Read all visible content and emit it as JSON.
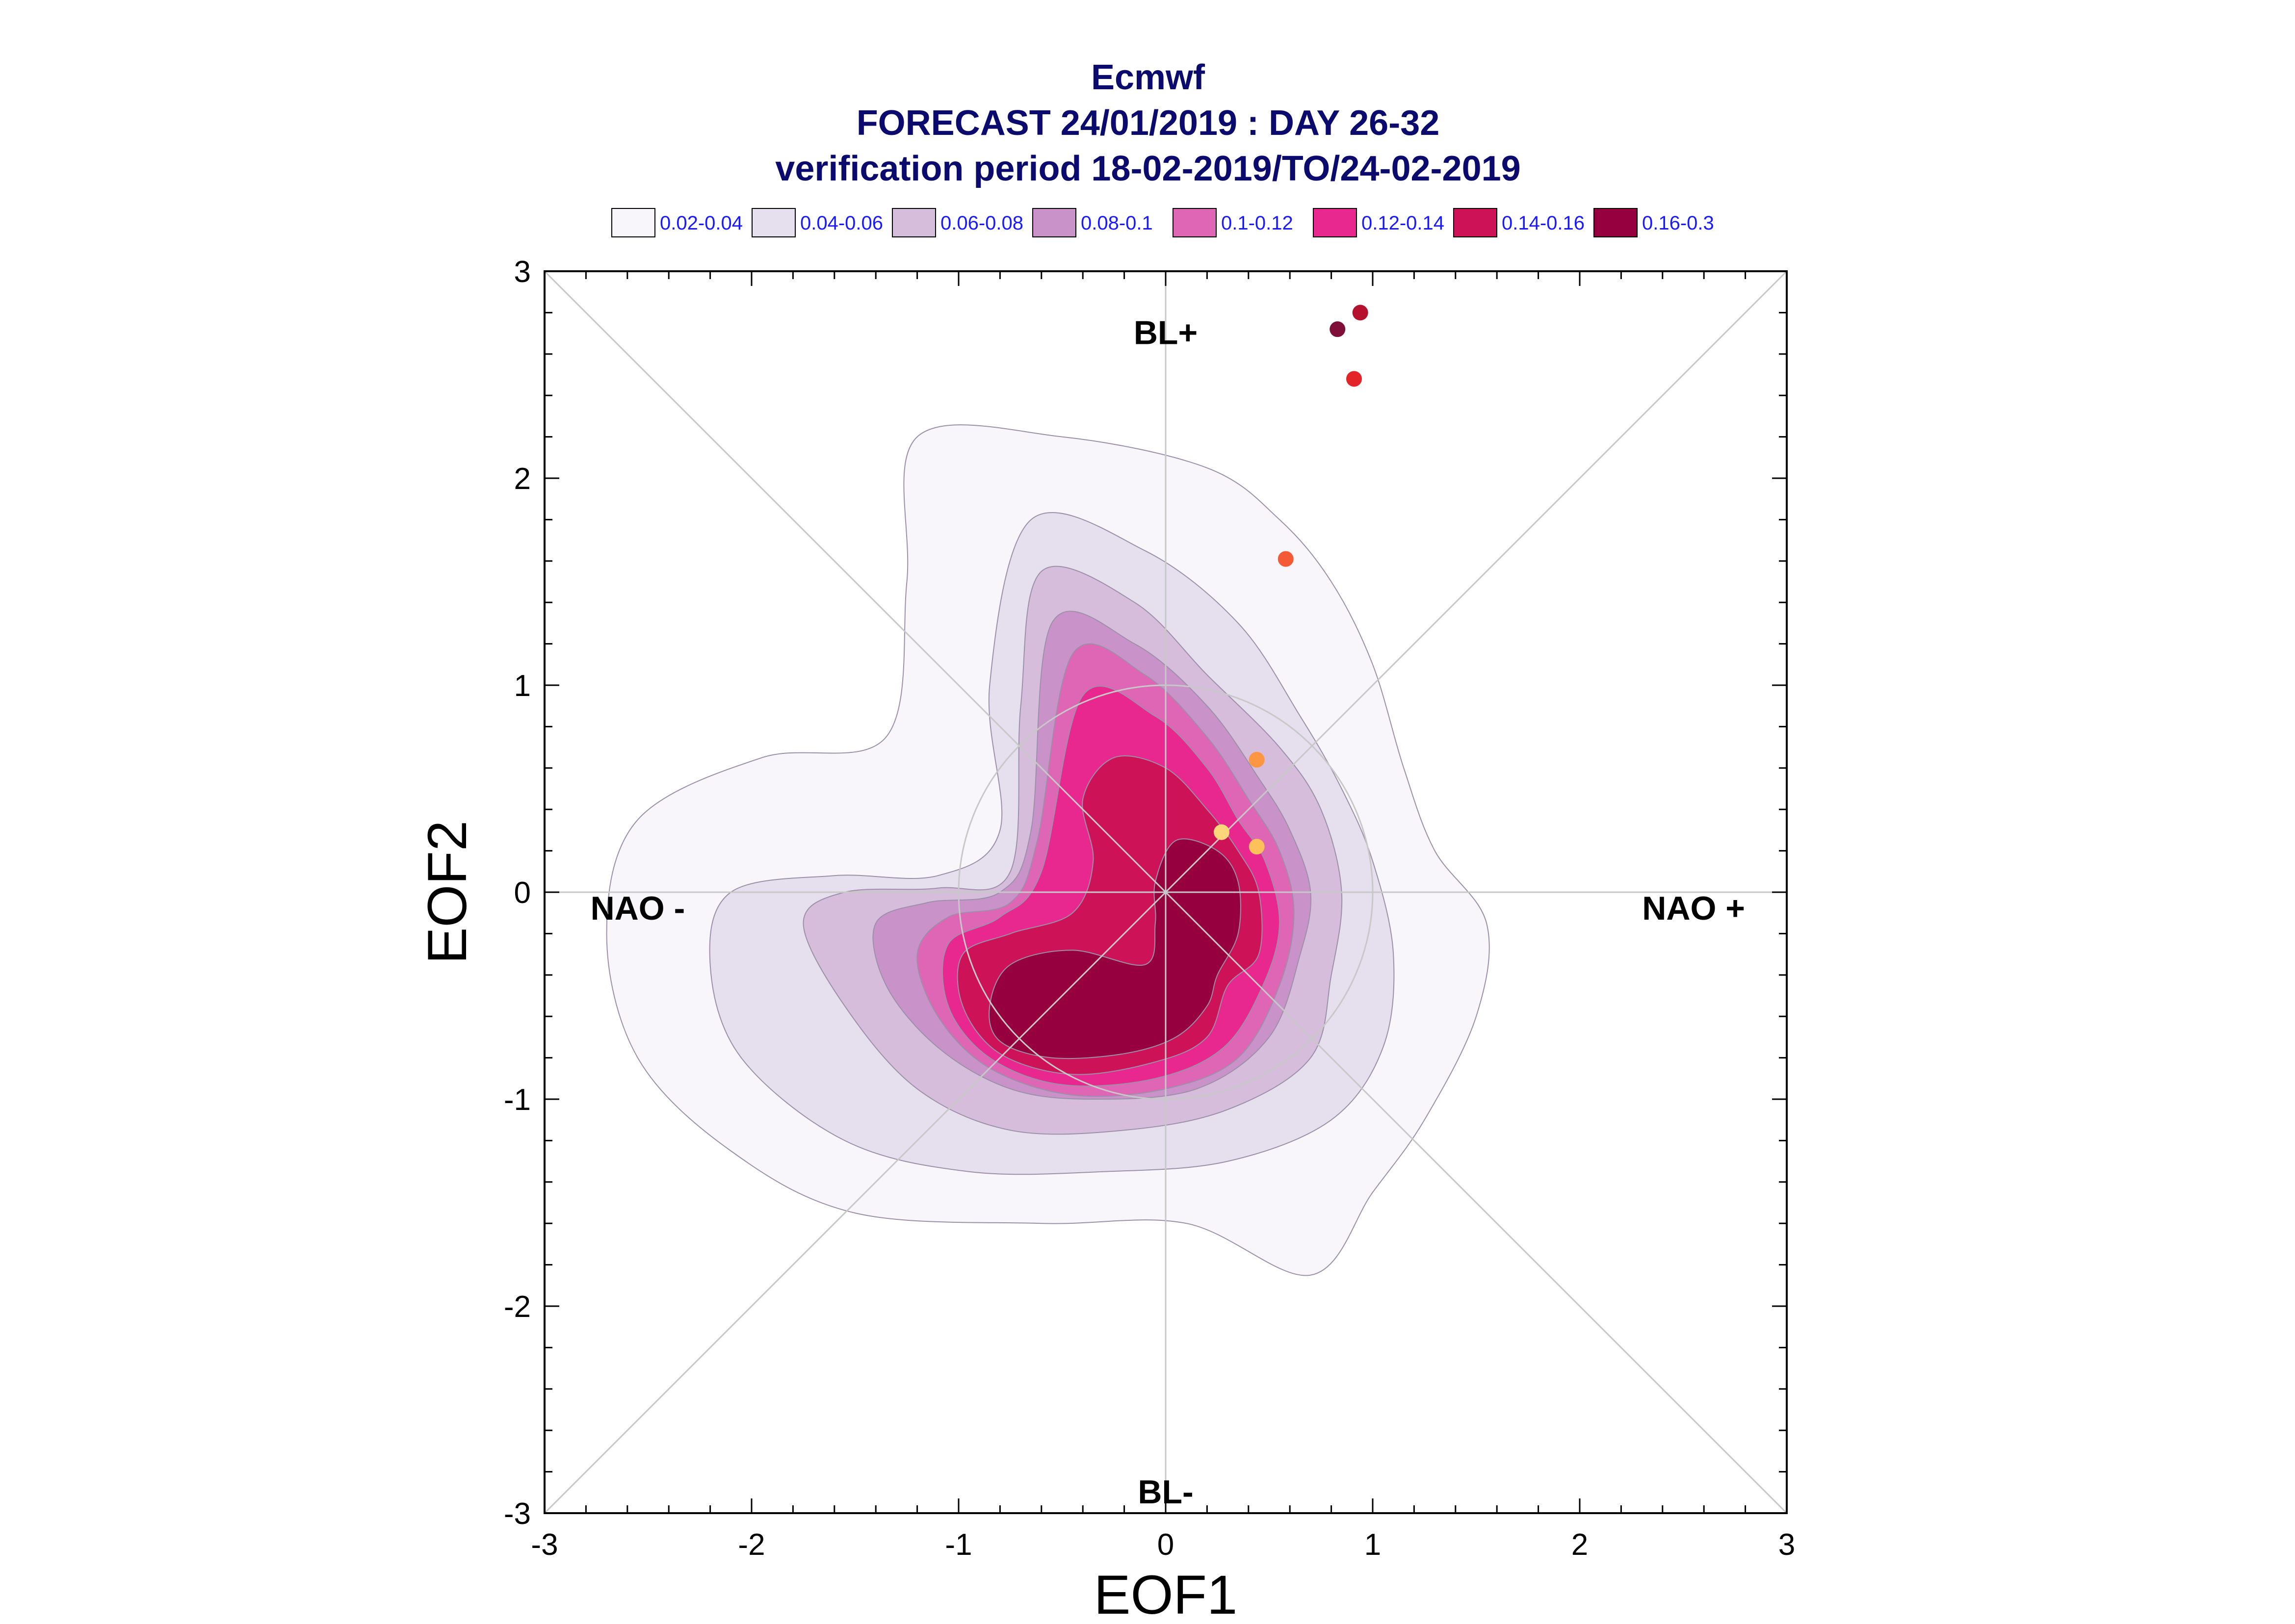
{
  "chart_data": {
    "type": "scatter",
    "title": [
      "Ecmwf",
      "FORECAST 24/01/2019 : DAY 26-32",
      "verification period 18-02-2019/TO/24-02-2019"
    ],
    "xlabel": "EOF1",
    "ylabel": "EOF2",
    "xlim": [
      -3,
      3
    ],
    "ylim": [
      -3,
      3
    ],
    "xticks": [
      "-3",
      "-2",
      "-1",
      "0",
      "1",
      "2",
      "3"
    ],
    "yticks": [
      "-3",
      "-2",
      "-1",
      "0",
      "1",
      "2",
      "3"
    ],
    "grid": false,
    "diagonals": true,
    "regime_labels": [
      {
        "text": "BL+",
        "x": 0.0,
        "y": 2.7
      },
      {
        "text": "BL-",
        "x": 0.0,
        "y": -2.9
      },
      {
        "text": "NAO -",
        "x": -2.55,
        "y": -0.08
      },
      {
        "text": "NAO +",
        "x": 2.55,
        "y": -0.08
      }
    ],
    "legend": {
      "placement": "top",
      "entries": [
        {
          "label": "0.02-0.04",
          "color": "#f8f6fb"
        },
        {
          "label": "0.04-0.06",
          "color": "#e6dfee"
        },
        {
          "label": "0.06-0.08",
          "color": "#d5bddb"
        },
        {
          "label": "0.08-0.1",
          "color": "#c993c9"
        },
        {
          "label": "0.1-0.12",
          "color": "#de66b5"
        },
        {
          "label": "0.12-0.14",
          "color": "#e8288e"
        },
        {
          "label": "0.14-0.16",
          "color": "#cd1257"
        },
        {
          "label": "0.16-0.3",
          "color": "#96003f"
        }
      ]
    },
    "density_levels": [
      {
        "level": "0.02-0.04",
        "color": "#f8f6fb",
        "path": [
          [
            -1.2,
            2.2
          ],
          [
            -0.5,
            2.2
          ],
          [
            0.2,
            2.05
          ],
          [
            0.55,
            1.8
          ],
          [
            0.8,
            1.5
          ],
          [
            1.0,
            1.1
          ],
          [
            1.15,
            0.6
          ],
          [
            1.3,
            0.2
          ],
          [
            1.55,
            -0.15
          ],
          [
            1.5,
            -0.6
          ],
          [
            1.25,
            -1.1
          ],
          [
            1.0,
            -1.45
          ],
          [
            0.7,
            -1.85
          ],
          [
            0.1,
            -1.6
          ],
          [
            -0.6,
            -1.6
          ],
          [
            -1.5,
            -1.55
          ],
          [
            -2.1,
            -1.25
          ],
          [
            -2.55,
            -0.8
          ],
          [
            -2.7,
            -0.2
          ],
          [
            -2.55,
            0.35
          ],
          [
            -1.95,
            0.65
          ],
          [
            -1.35,
            0.75
          ],
          [
            -1.25,
            1.5
          ]
        ]
      },
      {
        "level": "0.04-0.06",
        "color": "#e6dfee",
        "path": [
          [
            -0.65,
            1.8
          ],
          [
            -0.1,
            1.65
          ],
          [
            0.35,
            1.3
          ],
          [
            0.65,
            0.85
          ],
          [
            0.85,
            0.5
          ],
          [
            1.0,
            0.15
          ],
          [
            1.1,
            -0.3
          ],
          [
            1.05,
            -0.75
          ],
          [
            0.8,
            -1.1
          ],
          [
            0.3,
            -1.3
          ],
          [
            -0.3,
            -1.35
          ],
          [
            -0.95,
            -1.35
          ],
          [
            -1.55,
            -1.2
          ],
          [
            -2.05,
            -0.8
          ],
          [
            -2.2,
            -0.35
          ],
          [
            -2.1,
            0.0
          ],
          [
            -1.6,
            0.08
          ],
          [
            -1.1,
            0.08
          ],
          [
            -0.8,
            0.3
          ],
          [
            -0.85,
            1.0
          ]
        ]
      },
      {
        "level": "0.06-0.08",
        "color": "#d5bddb",
        "path": [
          [
            -0.6,
            1.55
          ],
          [
            -0.15,
            1.4
          ],
          [
            0.2,
            1.05
          ],
          [
            0.55,
            0.7
          ],
          [
            0.75,
            0.4
          ],
          [
            0.85,
            0.0
          ],
          [
            0.8,
            -0.4
          ],
          [
            0.7,
            -0.8
          ],
          [
            0.3,
            -1.05
          ],
          [
            -0.2,
            -1.15
          ],
          [
            -0.75,
            -1.15
          ],
          [
            -1.2,
            -0.95
          ],
          [
            -1.55,
            -0.55
          ],
          [
            -1.75,
            -0.15
          ],
          [
            -1.55,
            0.0
          ],
          [
            -1.1,
            0.02
          ],
          [
            -0.75,
            0.1
          ],
          [
            -0.7,
            0.9
          ]
        ]
      },
      {
        "level": "0.08-0.1",
        "color": "#c993c9",
        "path": [
          [
            -0.55,
            1.3
          ],
          [
            -0.15,
            1.2
          ],
          [
            0.2,
            0.9
          ],
          [
            0.45,
            0.55
          ],
          [
            0.6,
            0.3
          ],
          [
            0.7,
            0.0
          ],
          [
            0.65,
            -0.3
          ],
          [
            0.5,
            -0.7
          ],
          [
            0.15,
            -0.95
          ],
          [
            -0.35,
            -1.0
          ],
          [
            -0.75,
            -0.95
          ],
          [
            -1.1,
            -0.75
          ],
          [
            -1.35,
            -0.45
          ],
          [
            -1.4,
            -0.15
          ],
          [
            -1.15,
            -0.05
          ],
          [
            -0.8,
            0.0
          ],
          [
            -0.65,
            0.3
          ]
        ]
      },
      {
        "level": "0.1-0.12",
        "color": "#de66b5",
        "path": [
          [
            -0.45,
            1.15
          ],
          [
            -0.1,
            1.05
          ],
          [
            0.2,
            0.75
          ],
          [
            0.4,
            0.45
          ],
          [
            0.55,
            0.2
          ],
          [
            0.62,
            -0.1
          ],
          [
            0.55,
            -0.45
          ],
          [
            0.35,
            -0.8
          ],
          [
            0.0,
            -0.95
          ],
          [
            -0.45,
            -0.98
          ],
          [
            -0.85,
            -0.85
          ],
          [
            -1.1,
            -0.6
          ],
          [
            -1.2,
            -0.3
          ],
          [
            -1.05,
            -0.12
          ],
          [
            -0.75,
            -0.05
          ],
          [
            -0.62,
            0.25
          ]
        ]
      },
      {
        "level": "0.12-0.14",
        "color": "#e8288e",
        "path": [
          [
            -0.4,
            0.95
          ],
          [
            -0.05,
            0.85
          ],
          [
            0.2,
            0.6
          ],
          [
            0.35,
            0.35
          ],
          [
            0.48,
            0.15
          ],
          [
            0.55,
            -0.15
          ],
          [
            0.47,
            -0.45
          ],
          [
            0.28,
            -0.75
          ],
          [
            -0.05,
            -0.9
          ],
          [
            -0.5,
            -0.93
          ],
          [
            -0.85,
            -0.8
          ],
          [
            -1.05,
            -0.55
          ],
          [
            -1.05,
            -0.25
          ],
          [
            -0.8,
            -0.12
          ],
          [
            -0.6,
            0.1
          ]
        ]
      },
      {
        "level": "0.14-0.16",
        "color": "#cd1257",
        "path": [
          [
            -0.25,
            0.65
          ],
          [
            0.0,
            0.6
          ],
          [
            0.2,
            0.4
          ],
          [
            0.35,
            0.2
          ],
          [
            0.45,
            0.0
          ],
          [
            0.45,
            -0.3
          ],
          [
            0.3,
            -0.45
          ],
          [
            0.2,
            -0.7
          ],
          [
            -0.05,
            -0.82
          ],
          [
            -0.45,
            -0.88
          ],
          [
            -0.8,
            -0.78
          ],
          [
            -0.98,
            -0.55
          ],
          [
            -0.98,
            -0.3
          ],
          [
            -0.75,
            -0.2
          ],
          [
            -0.45,
            -0.1
          ],
          [
            -0.35,
            0.15
          ],
          [
            -0.4,
            0.45
          ]
        ]
      },
      {
        "level": "0.16-0.3",
        "color": "#96003f",
        "path": [
          [
            0.05,
            0.25
          ],
          [
            0.25,
            0.2
          ],
          [
            0.35,
            0.05
          ],
          [
            0.35,
            -0.2
          ],
          [
            0.25,
            -0.4
          ],
          [
            0.2,
            -0.55
          ],
          [
            0.05,
            -0.7
          ],
          [
            -0.2,
            -0.78
          ],
          [
            -0.55,
            -0.8
          ],
          [
            -0.8,
            -0.72
          ],
          [
            -0.85,
            -0.55
          ],
          [
            -0.75,
            -0.35
          ],
          [
            -0.45,
            -0.28
          ],
          [
            -0.1,
            -0.35
          ],
          [
            -0.05,
            -0.15
          ],
          [
            -0.05,
            0.05
          ]
        ]
      }
    ],
    "verification_points": [
      {
        "x": 0.83,
        "y": 2.72,
        "color": "#7f0f38"
      },
      {
        "x": 0.94,
        "y": 2.8,
        "color": "#b5102e"
      },
      {
        "x": 0.91,
        "y": 2.48,
        "color": "#e3252a"
      },
      {
        "x": 0.58,
        "y": 1.61,
        "color": "#f45a36"
      },
      {
        "x": 0.44,
        "y": 0.64,
        "color": "#fd9642"
      },
      {
        "x": 0.27,
        "y": 0.29,
        "color": "#fdd57a"
      },
      {
        "x": 0.44,
        "y": 0.22,
        "color": "#fdc15c"
      }
    ]
  }
}
